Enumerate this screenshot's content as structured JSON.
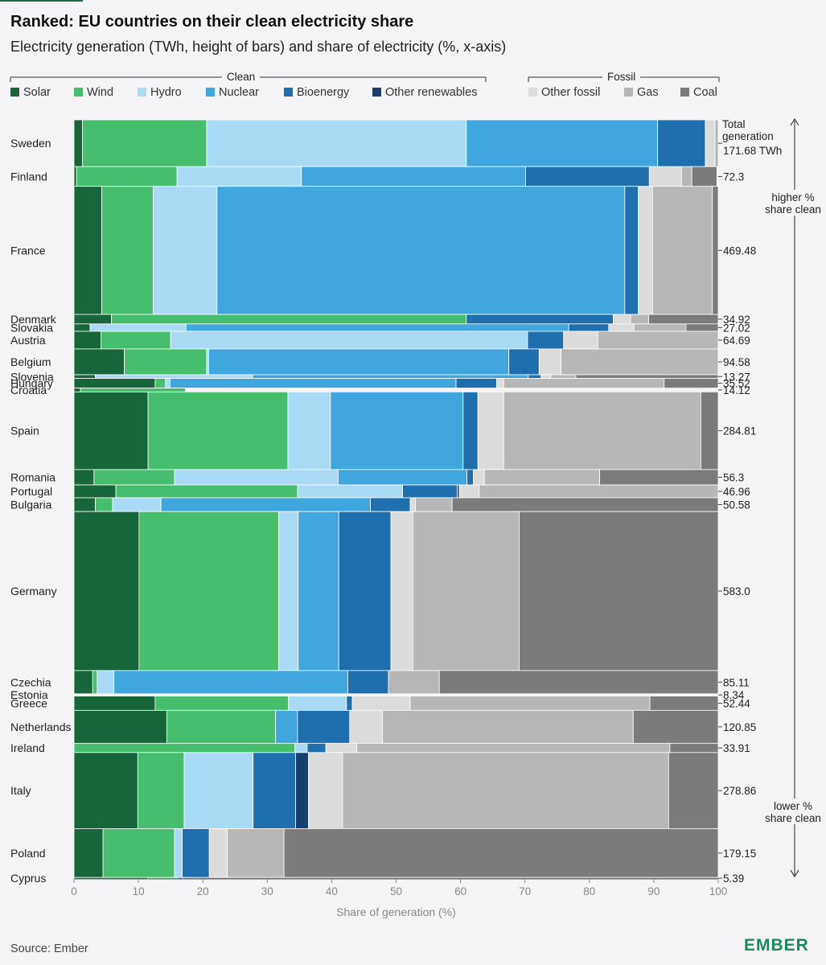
{
  "title": "Ranked: EU countries on their clean electricity share",
  "subtitle": "Electricity generation (TWh, height of bars) and share of electricity (%, x-axis)",
  "source": "Source: Ember",
  "logo": "EMBER",
  "legend": {
    "clean_label": "Clean",
    "fossil_label": "Fossil",
    "items": [
      {
        "name": "Solar",
        "color": "#17653b"
      },
      {
        "name": "Wind",
        "color": "#47bd6e"
      },
      {
        "name": "Hydro",
        "color": "#a8d9f5"
      },
      {
        "name": "Nuclear",
        "color": "#40a6dd"
      },
      {
        "name": "Bioenergy",
        "color": "#1f6fae"
      },
      {
        "name": "Other renewables",
        "color": "#173e70"
      },
      {
        "name": "Other fossil",
        "color": "#dcdcdc"
      },
      {
        "name": "Gas",
        "color": "#b7b7b7"
      },
      {
        "name": "Coal",
        "color": "#7b7b7b"
      }
    ]
  },
  "annotations": {
    "total_label_line1": "Total",
    "total_label_line2": "generation",
    "total_unit": "TWh",
    "higher_line1": "higher %",
    "higher_line2": "share clean",
    "lower_line1": "lower %",
    "lower_line2": "share clean"
  },
  "chart_data": {
    "type": "marimekko",
    "title": "Ranked: EU countries on their clean electricity share",
    "subtitle": "Electricity generation (TWh, height of bars) and share of electricity (%, x-axis)",
    "xlabel": "Share of generation (%)",
    "xlim": [
      0,
      100
    ],
    "xticks": [
      0,
      10,
      20,
      30,
      40,
      50,
      60,
      70,
      80,
      90,
      100
    ],
    "series": [
      "Solar",
      "Wind",
      "Hydro",
      "Nuclear",
      "Bioenergy",
      "Other renewables",
      "Other fossil",
      "Gas",
      "Coal"
    ],
    "rows": [
      {
        "country": "Sweden",
        "total_twh": 171.68,
        "label": "171.68 TWh",
        "shares": [
          1.3,
          19.3,
          40.3,
          29.7,
          7.4,
          0,
          1.5,
          0.5,
          0
        ]
      },
      {
        "country": "Finland",
        "total_twh": 72.3,
        "label": "72.3",
        "shares": [
          0.4,
          15.6,
          19.3,
          34.8,
          19.2,
          0,
          5,
          1.6,
          3.9
        ]
      },
      {
        "country": "France",
        "total_twh": 469.48,
        "label": "469.48",
        "shares": [
          4.3,
          8,
          9.9,
          63.3,
          2.1,
          0,
          2.2,
          9.3,
          0.9
        ]
      },
      {
        "country": "Denmark",
        "total_twh": 34.92,
        "label": "34.92",
        "shares": [
          5.8,
          55.1,
          0,
          0,
          22.8,
          0,
          2.7,
          2.8,
          10.8
        ]
      },
      {
        "country": "Slovakia",
        "total_twh": 27.02,
        "label": "27.02",
        "shares": [
          2.5,
          0,
          14.9,
          59.4,
          6.2,
          0,
          3.9,
          8.1,
          5
        ]
      },
      {
        "country": "Austria",
        "total_twh": 64.69,
        "label": "64.69",
        "shares": [
          4.2,
          10.8,
          55.4,
          0,
          5.6,
          0,
          5.3,
          18.7,
          0
        ]
      },
      {
        "country": "Belgium",
        "total_twh": 94.58,
        "label": "94.58",
        "shares": [
          7.8,
          12.8,
          0.3,
          46.6,
          4.7,
          0,
          3.4,
          24.4,
          0
        ]
      },
      {
        "country": "Slovenia",
        "total_twh": 13.27,
        "label": "13.27",
        "shares": [
          3.3,
          0,
          24.4,
          42.8,
          2,
          0,
          1.5,
          3.9,
          22.1
        ]
      },
      {
        "country": "Hungary",
        "total_twh": 35.52,
        "label": "35.52",
        "shares": [
          12.6,
          1.6,
          0.7,
          44.4,
          6.3,
          0,
          1.1,
          24.9,
          8.4
        ]
      },
      {
        "country": "Croatia",
        "total_twh": 14.12,
        "label": "14.12",
        "shares": [
          1,
          16.3,
          0,
          0,
          0,
          0,
          0,
          0,
          0
        ]
      },
      {
        "country": "Spain",
        "total_twh": 284.81,
        "label": "284.81",
        "shares": [
          11.5,
          21.7,
          6.6,
          20.6,
          2.3,
          0,
          4,
          30.6,
          2.7
        ]
      },
      {
        "country": "Romania",
        "total_twh": 56.3,
        "label": "56.3",
        "shares": [
          3.1,
          12.5,
          25.4,
          20,
          1,
          0,
          1.7,
          17.9,
          18.4
        ]
      },
      {
        "country": "Portugal",
        "total_twh": 46.96,
        "label": "46.96",
        "shares": [
          6.5,
          28.2,
          16.3,
          0,
          8.5,
          0.3,
          3.1,
          37.1,
          0
        ]
      },
      {
        "country": "Bulgaria",
        "total_twh": 50.58,
        "label": "50.58",
        "shares": [
          3.3,
          2.7,
          7.5,
          32.5,
          6.2,
          0,
          0.8,
          5.7,
          41.3
        ]
      },
      {
        "country": "Germany",
        "total_twh": 583.0,
        "label": "583.0",
        "shares": [
          10.1,
          21.7,
          3,
          6.3,
          8.1,
          0,
          3.4,
          16.5,
          30.9
        ]
      },
      {
        "country": "Czechia",
        "total_twh": 85.11,
        "label": "85.11",
        "shares": [
          2.9,
          0.7,
          2.6,
          36.3,
          6.3,
          0,
          0,
          7.9,
          43.3
        ]
      },
      {
        "country": "Estonia",
        "total_twh": 8.34,
        "label": "8.34",
        "shares": [
          0,
          0,
          0,
          0,
          0,
          0,
          0,
          0,
          0
        ]
      },
      {
        "country": "Greece",
        "total_twh": 52.44,
        "label": "52.44",
        "shares": [
          12.6,
          20.7,
          9,
          0,
          0.9,
          0,
          9,
          37.2,
          10.6
        ]
      },
      {
        "country": "Netherlands",
        "total_twh": 120.85,
        "label": "120.85",
        "shares": [
          14.4,
          16.9,
          0,
          3.4,
          8.1,
          0,
          5.1,
          38.9,
          13.2
        ]
      },
      {
        "country": "Ireland",
        "total_twh": 33.91,
        "label": "33.91",
        "shares": [
          0,
          34.3,
          1.9,
          0,
          2.9,
          0,
          4.8,
          48.6,
          7.5
        ]
      },
      {
        "country": "Italy",
        "total_twh": 278.86,
        "label": "278.86",
        "shares": [
          9.9,
          7.2,
          10.7,
          0,
          6.6,
          2,
          5.3,
          50.6,
          7.7
        ]
      },
      {
        "country": "Poland",
        "total_twh": 179.15,
        "label": "179.15",
        "shares": [
          4.5,
          11.1,
          1.2,
          0,
          4.2,
          0,
          2.8,
          8.8,
          67.4
        ]
      },
      {
        "country": "Cyprus",
        "total_twh": 5.39,
        "label": "5.39",
        "shares": [
          11.5,
          4.6,
          0,
          0,
          0.8,
          0,
          0,
          0,
          83.1
        ]
      }
    ]
  }
}
